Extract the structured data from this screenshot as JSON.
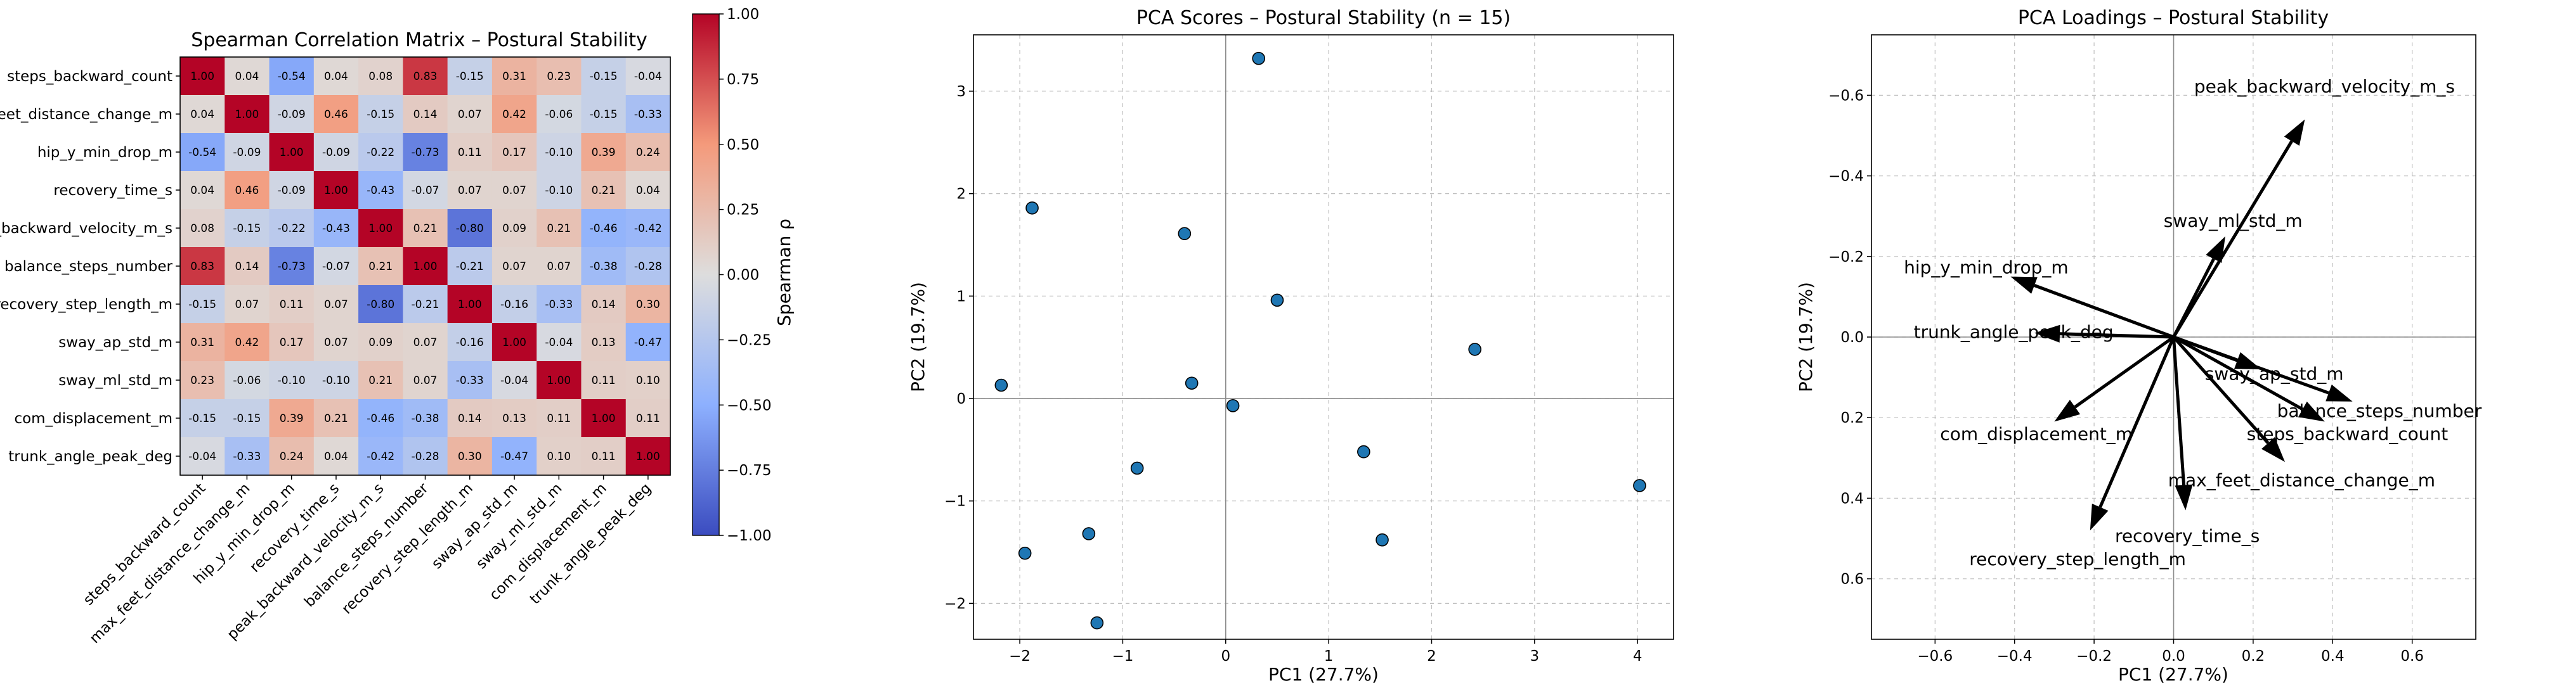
{
  "chart_data": [
    {
      "type": "heatmap",
      "title": "Spearman Correlation Matrix – Postural Stability",
      "colorbar_label": "Spearman ρ",
      "colorbar_ticks": [
        "1.00",
        "0.75",
        "0.50",
        "0.25",
        "0.00",
        "−0.25",
        "−0.50",
        "−0.75",
        "−1.00"
      ],
      "vmin": -1,
      "vmax": 1,
      "colormap": "coolwarm",
      "variables": [
        "steps_backward_count",
        "max_feet_distance_change_m",
        "hip_y_min_drop_m",
        "recovery_time_s",
        "peak_backward_velocity_m_s",
        "balance_steps_number",
        "recovery_step_length_m",
        "sway_ap_std_m",
        "sway_ml_std_m",
        "com_displacement_m",
        "trunk_angle_peak_deg"
      ],
      "matrix": [
        [
          1.0,
          0.04,
          -0.54,
          0.04,
          0.08,
          0.83,
          -0.15,
          0.31,
          0.23,
          -0.15,
          -0.04
        ],
        [
          0.04,
          1.0,
          -0.09,
          0.46,
          -0.15,
          0.14,
          0.07,
          0.42,
          -0.06,
          -0.15,
          -0.33
        ],
        [
          -0.54,
          -0.09,
          1.0,
          -0.09,
          -0.22,
          -0.73,
          0.11,
          0.17,
          -0.1,
          0.39,
          0.24
        ],
        [
          0.04,
          0.46,
          -0.09,
          1.0,
          -0.43,
          -0.07,
          0.07,
          0.07,
          -0.1,
          0.21,
          0.04
        ],
        [
          0.08,
          -0.15,
          -0.22,
          -0.43,
          1.0,
          0.21,
          -0.8,
          0.09,
          0.21,
          -0.46,
          -0.42
        ],
        [
          0.83,
          0.14,
          -0.73,
          -0.07,
          0.21,
          1.0,
          -0.21,
          0.07,
          0.07,
          -0.38,
          -0.28
        ],
        [
          -0.15,
          0.07,
          0.11,
          0.07,
          -0.8,
          -0.21,
          1.0,
          -0.16,
          -0.33,
          0.14,
          0.3
        ],
        [
          0.31,
          0.42,
          0.17,
          0.07,
          0.09,
          0.07,
          -0.16,
          1.0,
          -0.04,
          0.13,
          -0.47
        ],
        [
          0.23,
          -0.06,
          -0.1,
          -0.1,
          0.21,
          0.07,
          -0.33,
          -0.04,
          1.0,
          0.11,
          0.1
        ],
        [
          -0.15,
          -0.15,
          0.39,
          0.21,
          -0.46,
          -0.38,
          0.14,
          0.13,
          0.11,
          1.0,
          0.11
        ],
        [
          -0.04,
          -0.33,
          0.24,
          0.04,
          -0.42,
          -0.28,
          0.3,
          -0.47,
          0.1,
          0.11,
          1.0
        ]
      ]
    },
    {
      "type": "scatter",
      "title": "PCA Scores – Postural Stability (n = 15)",
      "xlabel": "PC1 (27.7%)",
      "ylabel": "PC2 (19.7%)",
      "xlim": [
        -2.45,
        4.35
      ],
      "ylim": [
        -2.35,
        3.55
      ],
      "xticks": [
        -2,
        -1,
        0,
        1,
        2,
        3,
        4
      ],
      "yticks": [
        -2,
        -1,
        0,
        1,
        2,
        3
      ],
      "grid": true,
      "color": "#1f77b4",
      "points": [
        {
          "x": 0.32,
          "y": 3.32
        },
        {
          "x": -1.88,
          "y": 1.86
        },
        {
          "x": -0.4,
          "y": 1.61
        },
        {
          "x": 0.5,
          "y": 0.96
        },
        {
          "x": 2.42,
          "y": 0.48
        },
        {
          "x": -2.18,
          "y": 0.13
        },
        {
          "x": -0.33,
          "y": 0.15
        },
        {
          "x": 0.07,
          "y": -0.07
        },
        {
          "x": -0.86,
          "y": -0.68
        },
        {
          "x": 1.34,
          "y": -0.52
        },
        {
          "x": 4.02,
          "y": -0.85
        },
        {
          "x": 1.52,
          "y": -1.38
        },
        {
          "x": -1.33,
          "y": -1.32
        },
        {
          "x": -1.95,
          "y": -1.51
        },
        {
          "x": -1.25,
          "y": -2.19
        }
      ]
    },
    {
      "type": "biplot-loadings",
      "title": "PCA Loadings – Postural Stability",
      "xlabel": "PC1 (27.7%)",
      "ylabel": "PC2 (19.7%)",
      "xlim": [
        -0.76,
        0.76
      ],
      "ylim": [
        -0.75,
        0.75
      ],
      "xticks": [
        "−0.6",
        "−0.4",
        "−0.2",
        "0.0",
        "0.2",
        "0.4",
        "0.6"
      ],
      "yticks": [
        "−0.6",
        "−0.4",
        "−0.2",
        "0.0",
        "0.2",
        "0.4",
        "0.6"
      ],
      "grid": true,
      "vectors": [
        {
          "name": "peak_backward_velocity_m_s",
          "x": 0.33,
          "y": 0.54
        },
        {
          "name": "sway_ml_std_m",
          "x": 0.13,
          "y": 0.25
        },
        {
          "name": "hip_y_min_drop_m",
          "x": -0.41,
          "y": 0.15
        },
        {
          "name": "trunk_angle_peak_deg",
          "x": -0.35,
          "y": 0.01
        },
        {
          "name": "sway_ap_std_m",
          "x": 0.22,
          "y": -0.08
        },
        {
          "name": "balance_steps_number",
          "x": 0.45,
          "y": -0.16
        },
        {
          "name": "steps_backward_count",
          "x": 0.38,
          "y": -0.21
        },
        {
          "name": "max_feet_distance_change_m",
          "x": 0.28,
          "y": -0.31
        },
        {
          "name": "recovery_time_s",
          "x": 0.03,
          "y": -0.43
        },
        {
          "name": "com_displacement_m",
          "x": -0.3,
          "y": -0.21
        },
        {
          "name": "recovery_step_length_m",
          "x": -0.21,
          "y": -0.48
        }
      ]
    }
  ]
}
